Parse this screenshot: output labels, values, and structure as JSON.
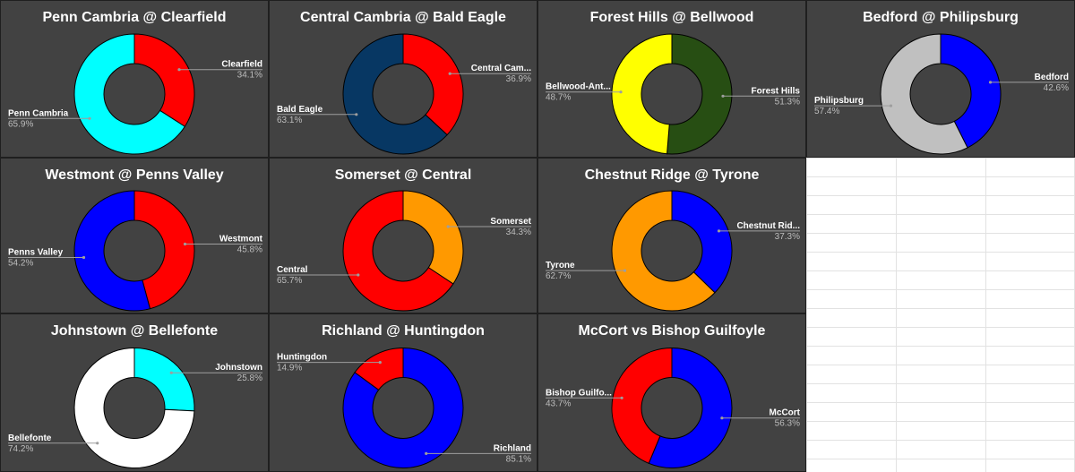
{
  "colors": {
    "card_background": "#424242",
    "leader_line": "#9e9e9e",
    "label_text": "#ffffff",
    "percent_text": "#bdbdbd",
    "sheet_background": "#ffffff",
    "sheet_gridline": "#e2e2e2"
  },
  "chart_data": [
    {
      "type": "pie",
      "donut": true,
      "title": "Penn Cambria @ Clearfield",
      "slices": [
        {
          "label": "Clearfield",
          "percent_label": "34.1%",
          "value": 34.1,
          "color": "#ff0000"
        },
        {
          "label": "Penn Cambria",
          "percent_label": "65.9%",
          "value": 65.9,
          "color": "#00ffff"
        }
      ]
    },
    {
      "type": "pie",
      "donut": true,
      "title": "Central Cambria @ Bald Eagle",
      "slices": [
        {
          "label": "Central Cam...",
          "percent_label": "36.9%",
          "value": 36.9,
          "color": "#ff0000"
        },
        {
          "label": "Bald Eagle",
          "percent_label": "63.1%",
          "value": 63.1,
          "color": "#073763"
        }
      ]
    },
    {
      "type": "pie",
      "donut": true,
      "title": "Forest Hills @ Bellwood",
      "slices": [
        {
          "label": "Forest Hills",
          "percent_label": "51.3%",
          "value": 51.3,
          "color": "#274e13"
        },
        {
          "label": "Bellwood-Ant...",
          "percent_label": "48.7%",
          "value": 48.7,
          "color": "#ffff00"
        }
      ]
    },
    {
      "type": "pie",
      "donut": true,
      "title": "Bedford @ Philipsburg",
      "slices": [
        {
          "label": "Bedford",
          "percent_label": "42.6%",
          "value": 42.6,
          "color": "#0000ff"
        },
        {
          "label": "Philipsburg",
          "percent_label": "57.4%",
          "value": 57.4,
          "color": "#c0c0c0"
        }
      ]
    },
    {
      "type": "pie",
      "donut": true,
      "title": "Westmont @ Penns Valley",
      "slices": [
        {
          "label": "Westmont",
          "percent_label": "45.8%",
          "value": 45.8,
          "color": "#ff0000"
        },
        {
          "label": "Penns Valley",
          "percent_label": "54.2%",
          "value": 54.2,
          "color": "#0000ff"
        }
      ]
    },
    {
      "type": "pie",
      "donut": true,
      "title": "Somerset @ Central",
      "slices": [
        {
          "label": "Somerset",
          "percent_label": "34.3%",
          "value": 34.3,
          "color": "#ff9900"
        },
        {
          "label": "Central",
          "percent_label": "65.7%",
          "value": 65.7,
          "color": "#ff0000"
        }
      ]
    },
    {
      "type": "pie",
      "donut": true,
      "title": "Chestnut Ridge @ Tyrone",
      "slices": [
        {
          "label": "Chestnut Rid...",
          "percent_label": "37.3%",
          "value": 37.3,
          "color": "#0000ff"
        },
        {
          "label": "Tyrone",
          "percent_label": "62.7%",
          "value": 62.7,
          "color": "#ff9900"
        }
      ]
    },
    {
      "type": "pie",
      "donut": true,
      "title": "Johnstown @ Bellefonte",
      "slices": [
        {
          "label": "Johnstown",
          "percent_label": "25.8%",
          "value": 25.8,
          "color": "#00ffff"
        },
        {
          "label": "Bellefonte",
          "percent_label": "74.2%",
          "value": 74.2,
          "color": "#ffffff"
        }
      ]
    },
    {
      "type": "pie",
      "donut": true,
      "title": "Richland @ Huntingdon",
      "slices": [
        {
          "label": "Richland",
          "percent_label": "85.1%",
          "value": 85.1,
          "color": "#0000ff"
        },
        {
          "label": "Huntingdon",
          "percent_label": "14.9%",
          "value": 14.9,
          "color": "#ff0000"
        }
      ]
    },
    {
      "type": "pie",
      "donut": true,
      "title": "McCort vs Bishop Guilfoyle",
      "slices": [
        {
          "label": "McCort",
          "percent_label": "56.3%",
          "value": 56.3,
          "color": "#0000ff"
        },
        {
          "label": "Bishop Guilfo...",
          "percent_label": "43.7%",
          "value": 43.7,
          "color": "#ff0000"
        }
      ]
    }
  ]
}
